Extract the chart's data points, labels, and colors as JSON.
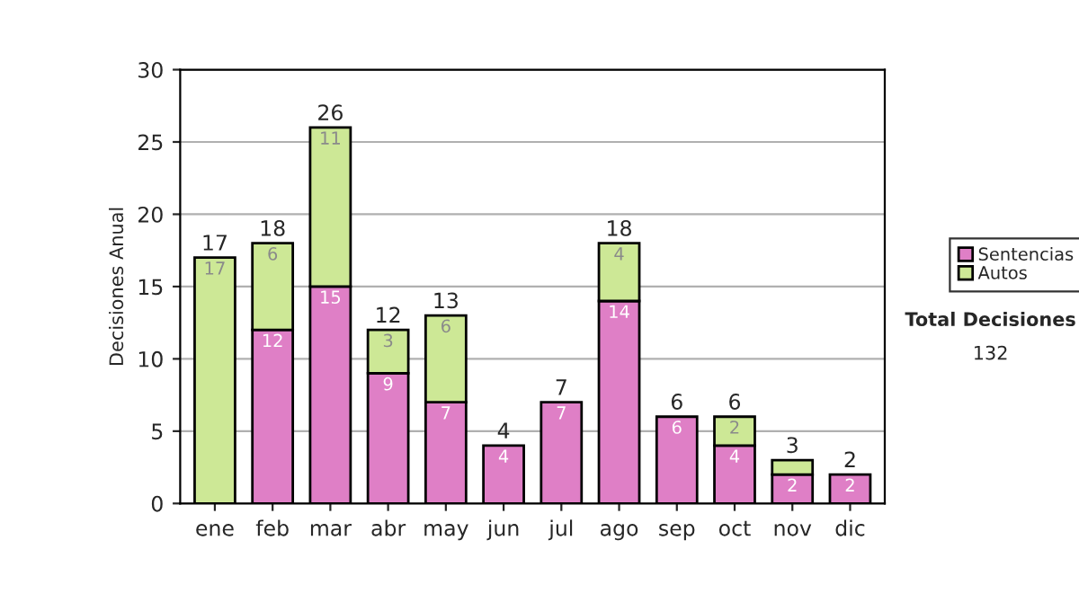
{
  "chart_data": {
    "type": "bar",
    "stacked": true,
    "ylabel": "Decisiones Anual",
    "categories": [
      "ene",
      "feb",
      "mar",
      "abr",
      "may",
      "jun",
      "jul",
      "ago",
      "sep",
      "oct",
      "nov",
      "dic"
    ],
    "series": [
      {
        "name": "Sentencias",
        "color": "#df7fc6",
        "values": [
          null,
          12,
          15,
          9,
          7,
          4,
          7,
          14,
          6,
          4,
          2,
          2
        ],
        "value_labels": [
          null,
          "12",
          "15",
          "9",
          "7",
          "4",
          "7",
          "14",
          "6",
          "4",
          "2",
          "2"
        ]
      },
      {
        "name": "Autos",
        "color": "#cde896",
        "values": [
          17,
          6,
          11,
          3,
          6,
          null,
          null,
          4,
          null,
          2,
          1,
          null
        ],
        "value_labels": [
          "17",
          "6",
          "11",
          "3",
          "6",
          null,
          null,
          "4",
          null,
          "2",
          null,
          null
        ]
      }
    ],
    "totals": [
      "17",
      "18",
      "26",
      "12",
      "13",
      "4",
      "7",
      "18",
      "6",
      "6",
      "3",
      "2"
    ],
    "ylim": [
      0,
      30
    ],
    "yticks": [
      0,
      5,
      10,
      15,
      20,
      25,
      30
    ],
    "grid": "y",
    "legend": "right",
    "annotations": [
      "Total Decisiones",
      "132"
    ]
  }
}
